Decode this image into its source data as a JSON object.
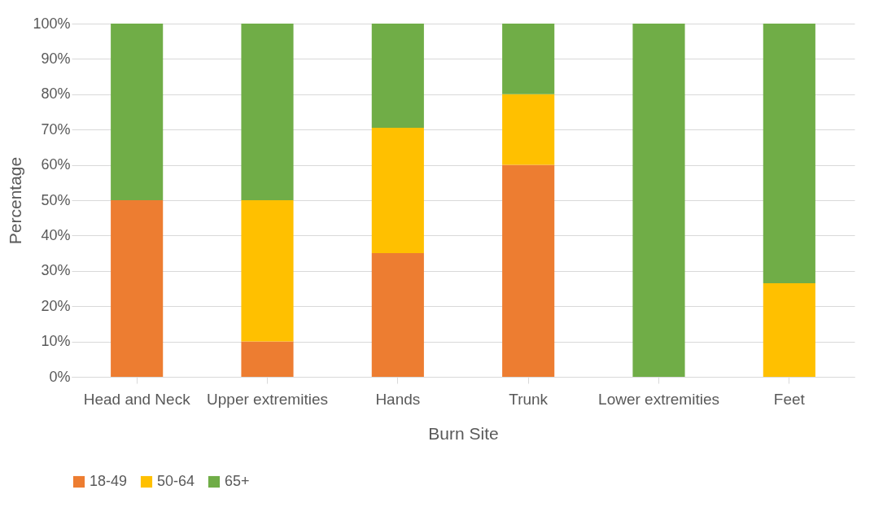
{
  "chart_data": {
    "type": "bar",
    "stacked": true,
    "xlabel": "Burn Site",
    "ylabel": "Percentage",
    "categories": [
      "Head and Neck",
      "Upper extremities",
      "Hands",
      "Trunk",
      "Lower extremities",
      "Feet"
    ],
    "series": [
      {
        "name": "18-49",
        "color": "#ed7d31",
        "values": [
          50,
          10,
          35,
          60,
          0,
          0
        ]
      },
      {
        "name": "50-64",
        "color": "#ffc000",
        "values": [
          0,
          40,
          35.5,
          20,
          0,
          26.5
        ]
      },
      {
        "name": "65+",
        "color": "#70ad47",
        "values": [
          50,
          50,
          29.5,
          20,
          100,
          73.5
        ]
      }
    ],
    "ylim": [
      0,
      100
    ],
    "yticks": [
      {
        "value": 0,
        "label": "0%"
      },
      {
        "value": 10,
        "label": "10%"
      },
      {
        "value": 20,
        "label": "20%"
      },
      {
        "value": 30,
        "label": "30%"
      },
      {
        "value": 40,
        "label": "40%"
      },
      {
        "value": 50,
        "label": "50%"
      },
      {
        "value": 60,
        "label": "60%"
      },
      {
        "value": 70,
        "label": "70%"
      },
      {
        "value": 80,
        "label": "80%"
      },
      {
        "value": 90,
        "label": "90%"
      },
      {
        "value": 100,
        "label": "100%"
      }
    ],
    "grid": "y",
    "legend": "bottom"
  }
}
